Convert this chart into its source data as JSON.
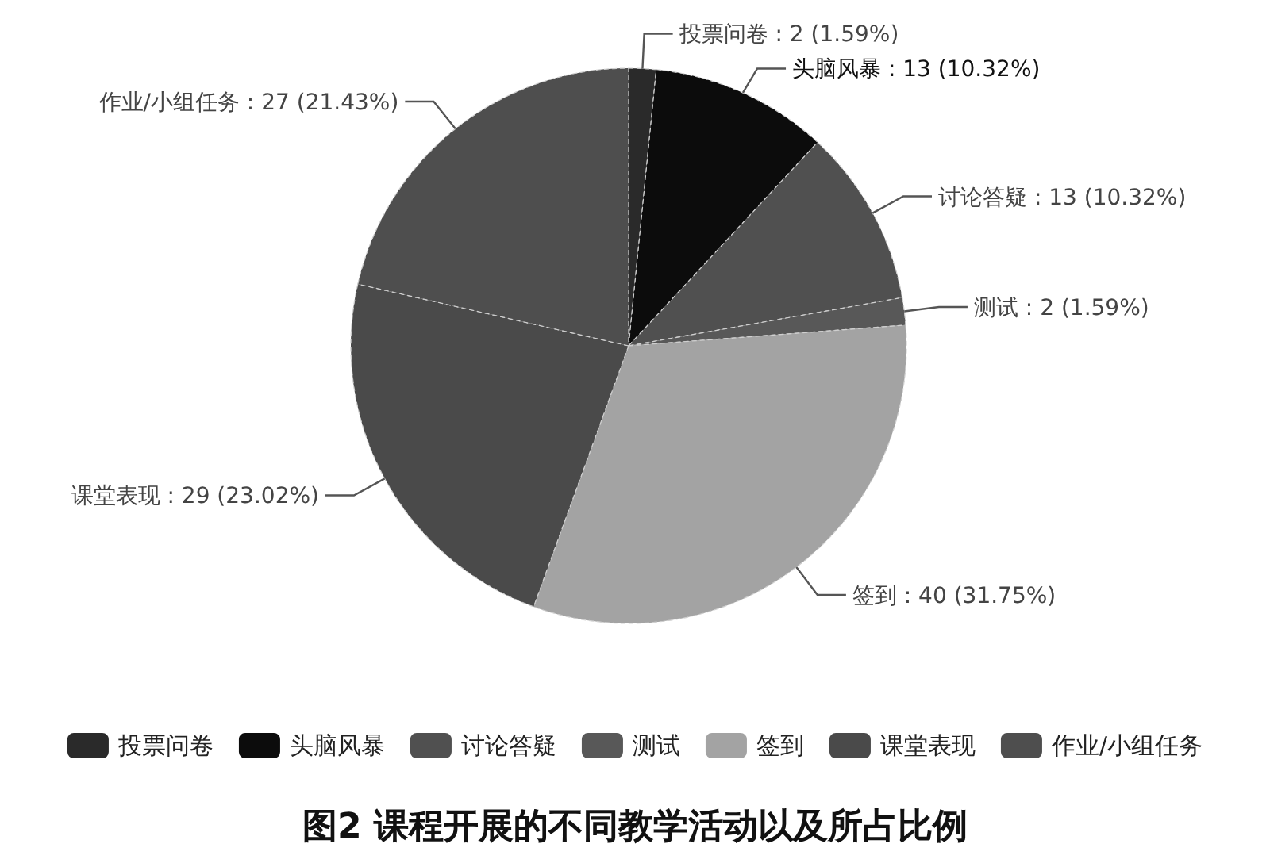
{
  "chart_data": {
    "type": "pie",
    "title": "图2  课程开展的不同教学活动以及所占比例",
    "categories": [
      "投票问卷",
      "头脑风暴",
      "讨论答疑",
      "测试",
      "签到",
      "课堂表现",
      "作业/小组任务"
    ],
    "values": [
      2,
      13,
      13,
      2,
      40,
      29,
      27
    ],
    "value_labels": [
      ": 2 (1.59%)",
      ": 13 (10.32%)",
      ": 13 (10.32%)",
      ": 2 (1.59%)",
      ": 40 (31.75%)",
      ": 29 (23.02%)",
      ": 27 (21.43%)"
    ],
    "colors": [
      "#2a2a2a",
      "#0c0c0c",
      "#505050",
      "#585858",
      "#a3a3a3",
      "#4a4a4a",
      "#4e4e4e"
    ],
    "legend": "bottom"
  }
}
